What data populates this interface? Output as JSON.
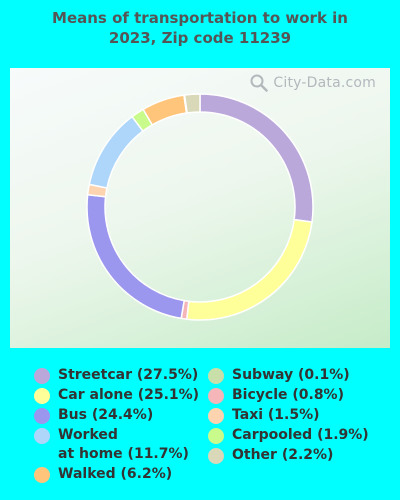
{
  "title_line1": "Means of transportation to work in",
  "title_line2": "2023, Zip code 11239",
  "watermark": "City-Data.com",
  "chart_data": {
    "type": "pie",
    "donut": true,
    "unit": "%",
    "slices": [
      {
        "name": "Streetcar",
        "value": 27.5,
        "color": "#BBA8DB"
      },
      {
        "name": "Car alone",
        "value": 25.1,
        "color": "#FFFF99"
      },
      {
        "name": "Bicycle",
        "value": 0.8,
        "color": "#F4B6B8"
      },
      {
        "name": "Bus",
        "value": 24.4,
        "color": "#9B96EE"
      },
      {
        "name": "Taxi",
        "value": 1.5,
        "color": "#FDD3B0"
      },
      {
        "name": "Worked at home",
        "value": 11.7,
        "color": "#AED6FA"
      },
      {
        "name": "Carpooled",
        "value": 1.9,
        "color": "#C8FB8C"
      },
      {
        "name": "Walked",
        "value": 6.2,
        "color": "#FFC57B"
      },
      {
        "name": "Subway",
        "value": 0.1,
        "color": "#C9DFAA"
      },
      {
        "name": "Other",
        "value": 2.2,
        "color": "#D9D8B8"
      }
    ]
  },
  "legend": {
    "left": [
      {
        "label": "Streetcar (27.5%)",
        "color": "#BBA8DB"
      },
      {
        "label": "Car alone (25.1%)",
        "color": "#FFFF99"
      },
      {
        "label": "Bus (24.4%)",
        "color": "#9B96EE"
      },
      {
        "label": "Worked",
        "label2": "at home (11.7%)",
        "color": "#AED6FA"
      },
      {
        "label": "Walked (6.2%)",
        "color": "#FFC57B"
      }
    ],
    "right": [
      {
        "label": "Subway (0.1%)",
        "color": "#C9DFAA"
      },
      {
        "label": "Bicycle (0.8%)",
        "color": "#F4B6B8"
      },
      {
        "label": "Taxi (1.5%)",
        "color": "#FDD3B0"
      },
      {
        "label": "Carpooled (1.9%)",
        "color": "#C8FB8C"
      },
      {
        "label": "Other (2.2%)",
        "color": "#D9D8B8"
      }
    ]
  }
}
